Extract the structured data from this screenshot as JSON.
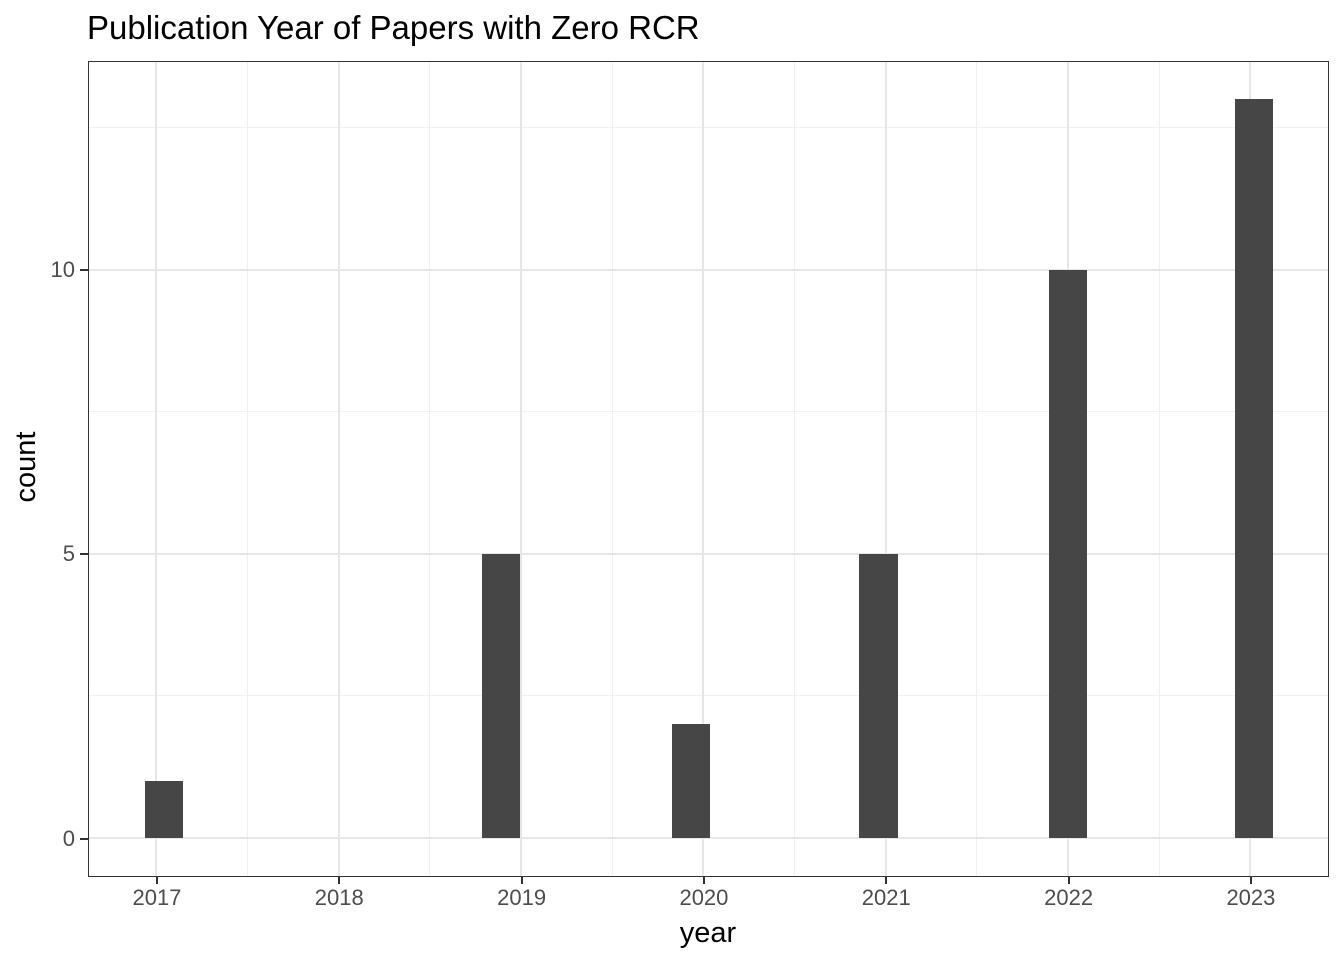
{
  "title": "Publication Year of Papers with Zero RCR",
  "chart_data": {
    "type": "bar",
    "subtype": "histogram",
    "title": "Publication Year of Papers with Zero RCR",
    "xlabel": "year",
    "ylabel": "count",
    "x_ticks": [
      2017,
      2018,
      2019,
      2020,
      2021,
      2022,
      2023
    ],
    "y_ticks": [
      0,
      5,
      10
    ],
    "x_minor_gridlines": [
      2017.5,
      2018.5,
      2019.5,
      2020.5,
      2021.5,
      2022.5
    ],
    "y_minor_gridlines": [
      2.5,
      7.5,
      12.5
    ],
    "xlim": [
      2016.63,
      2023.42
    ],
    "ylim": [
      -0.65,
      13.65
    ],
    "grid": "major+minor",
    "legend": "none",
    "bar_width_years": 0.21,
    "bars": [
      {
        "year_label": "2017",
        "x_center": 2017.04,
        "count": 1
      },
      {
        "year_label": "2019",
        "x_center": 2018.89,
        "count": 5
      },
      {
        "year_label": "2020",
        "x_center": 2019.93,
        "count": 2
      },
      {
        "year_label": "2021",
        "x_center": 2020.96,
        "count": 5
      },
      {
        "year_label": "2022",
        "x_center": 2022.0,
        "count": 10
      },
      {
        "year_label": "2023",
        "x_center": 2023.02,
        "count": 13
      }
    ],
    "counts_by_year": {
      "2017": 1,
      "2018": 0,
      "2019": 5,
      "2020": 2,
      "2021": 5,
      "2022": 10,
      "2023": 13
    }
  },
  "colors": {
    "background": "#ffffff",
    "bar_fill": "#464646",
    "grid_major": "#e6e6e6",
    "grid_minor": "#f0f0f0",
    "panel_border": "#333333",
    "axis_text": "#4d4d4d",
    "title_text": "#000000"
  }
}
